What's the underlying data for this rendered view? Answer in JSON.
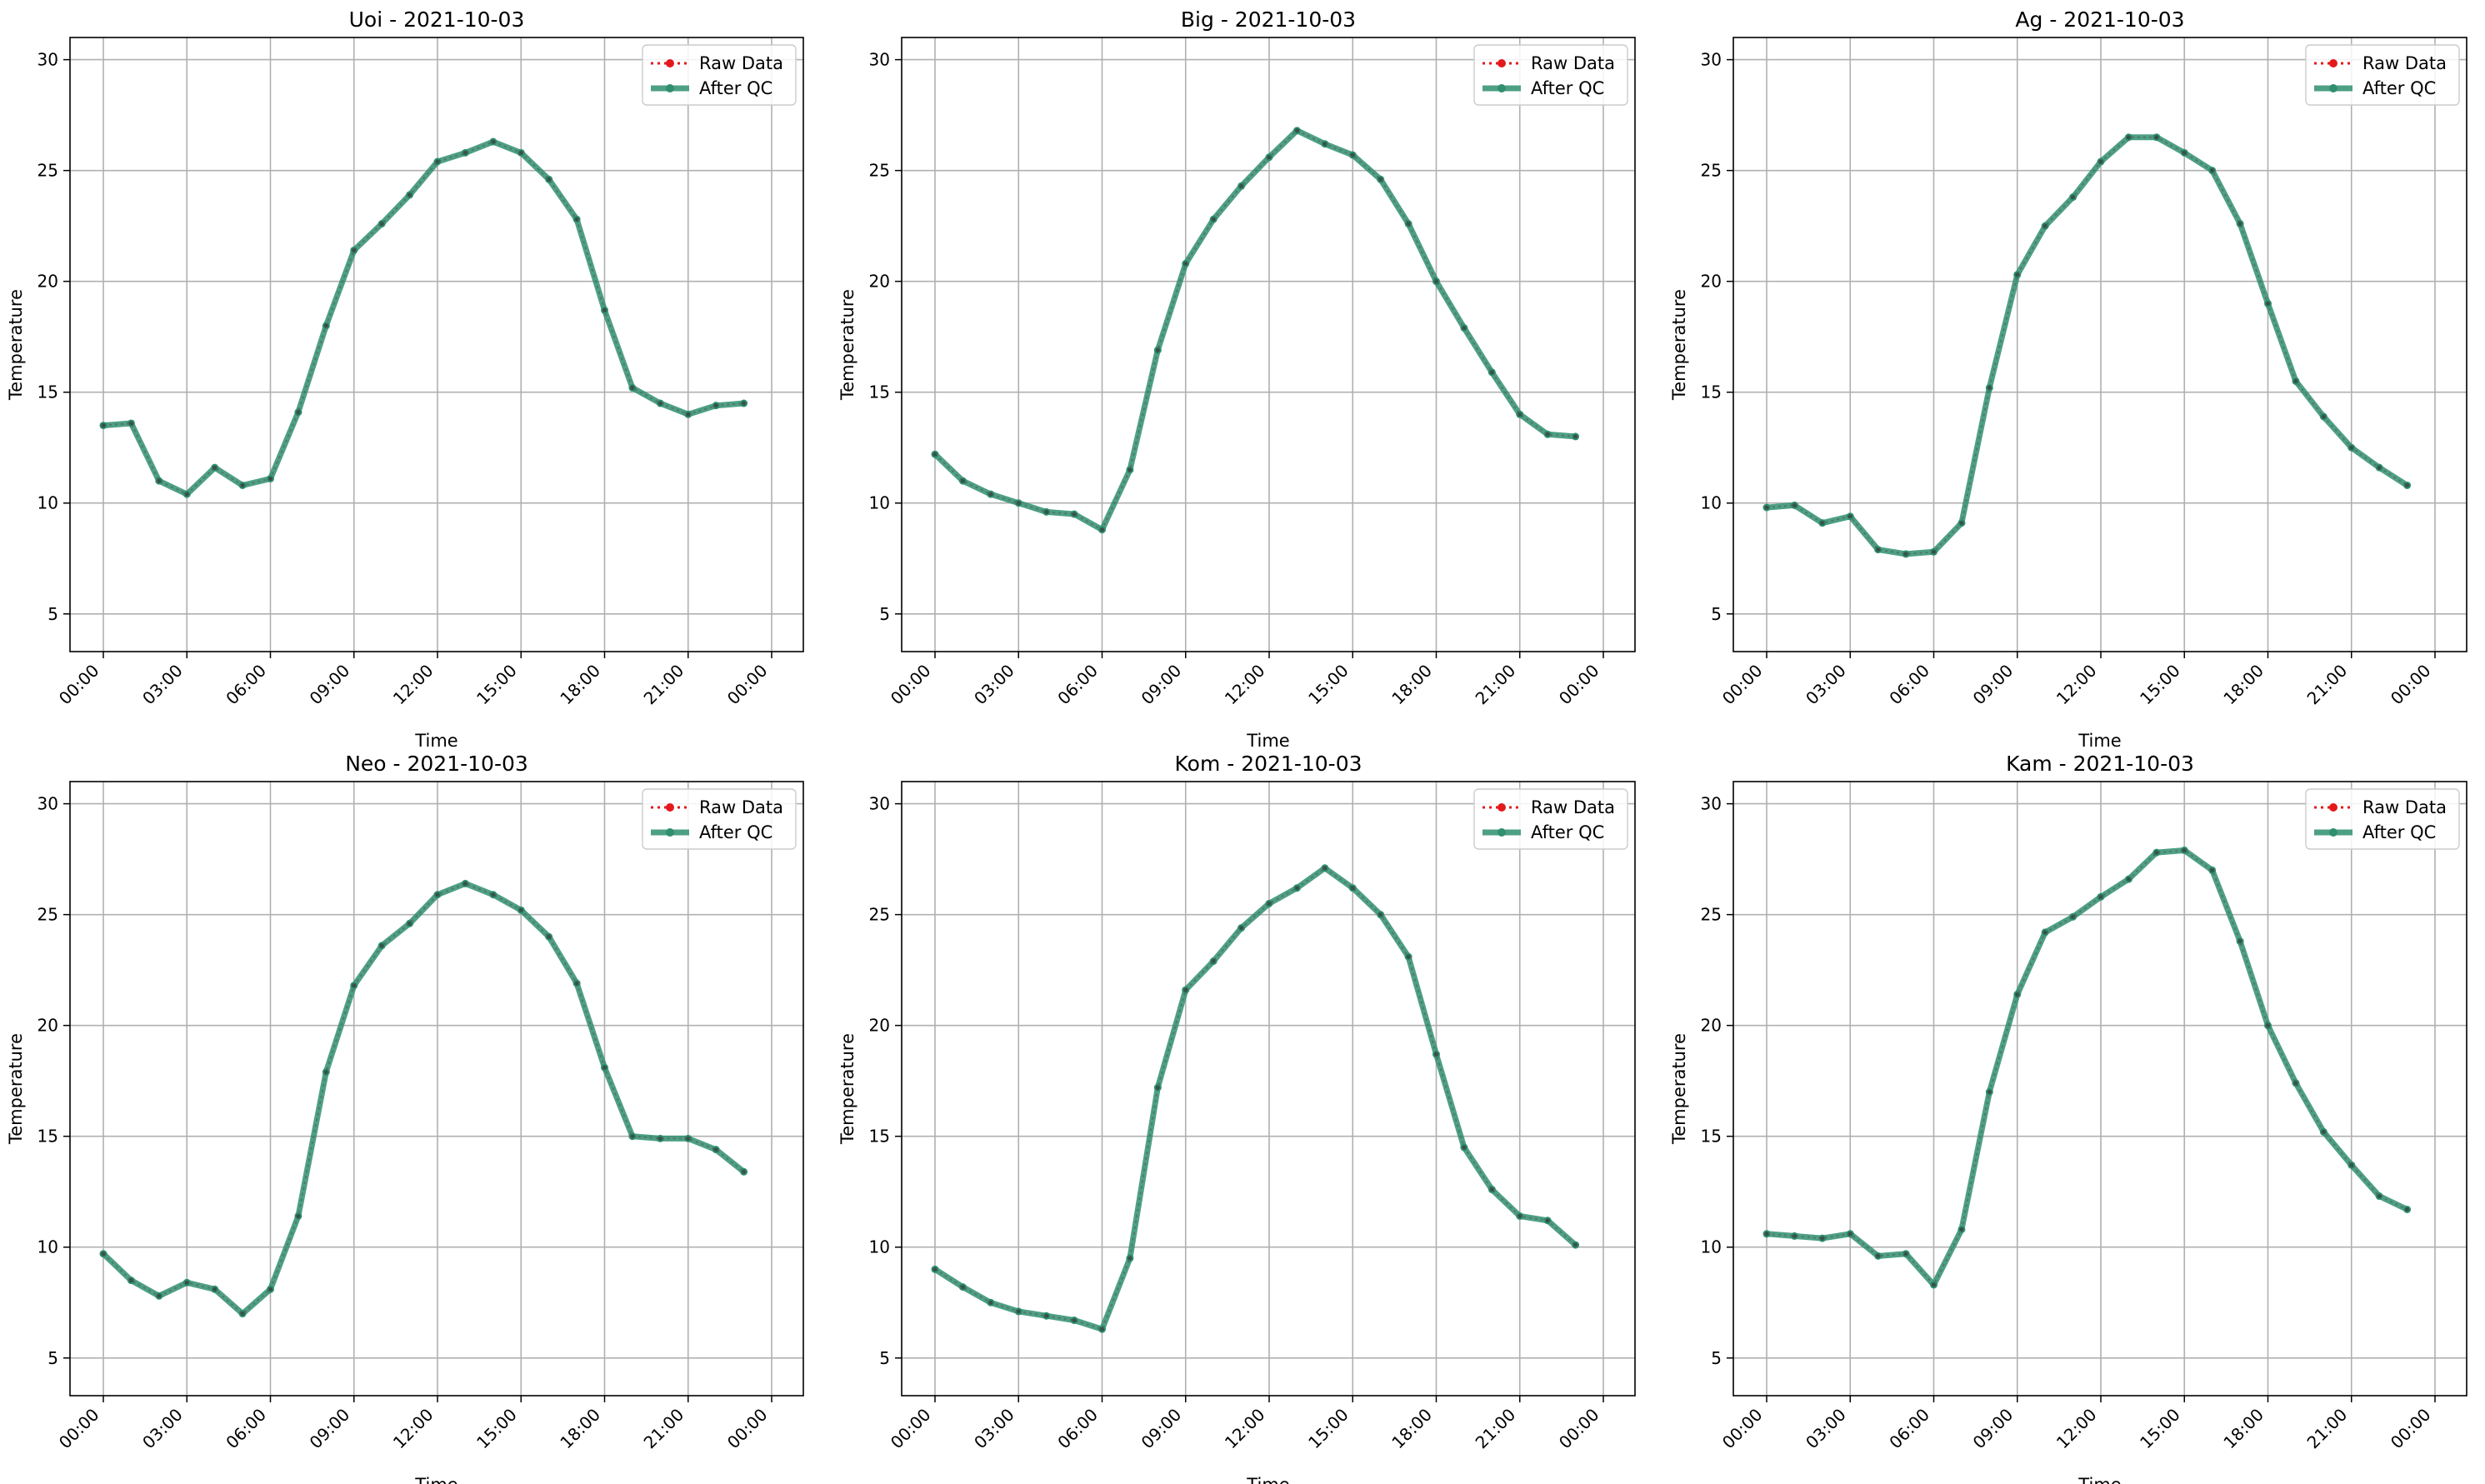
{
  "chart_data": [
    {
      "type": "line",
      "title": "Uoi - 2021-10-03",
      "xlabel": "Time",
      "ylabel": "Temperature",
      "x": [
        "00:00",
        "01:00",
        "02:00",
        "03:00",
        "04:00",
        "05:00",
        "06:00",
        "07:00",
        "08:00",
        "09:00",
        "10:00",
        "11:00",
        "12:00",
        "13:00",
        "14:00",
        "15:00",
        "16:00",
        "17:00",
        "18:00",
        "19:00",
        "20:00",
        "21:00",
        "22:00",
        "23:00"
      ],
      "xticks": [
        "00:00",
        "03:00",
        "06:00",
        "09:00",
        "12:00",
        "15:00",
        "18:00",
        "21:00",
        "00:00"
      ],
      "yticks": [
        "5",
        "10",
        "15",
        "20",
        "25",
        "30"
      ],
      "ylim": [
        3.3,
        31
      ],
      "grid": true,
      "legend_position": "top-right",
      "series": [
        {
          "name": "Raw Data",
          "color": "#e31a1c",
          "values": [
            13.5,
            13.6,
            11.0,
            10.4,
            11.6,
            10.8,
            11.1,
            14.1,
            18.0,
            21.4,
            22.6,
            23.9,
            25.4,
            25.8,
            26.3,
            25.8,
            24.6,
            22.8,
            18.7,
            15.2,
            14.5,
            14.0,
            14.4,
            14.5
          ]
        },
        {
          "name": "After QC",
          "color": "#2f8f6e",
          "values": [
            13.5,
            13.6,
            11.0,
            10.4,
            11.6,
            10.8,
            11.1,
            14.1,
            18.0,
            21.4,
            22.6,
            23.9,
            25.4,
            25.8,
            26.3,
            25.8,
            24.6,
            22.8,
            18.7,
            15.2,
            14.5,
            14.0,
            14.4,
            14.5
          ]
        }
      ]
    },
    {
      "type": "line",
      "title": "Big - 2021-10-03",
      "xlabel": "Time",
      "ylabel": "Temperature",
      "x": [
        "00:00",
        "01:00",
        "02:00",
        "03:00",
        "04:00",
        "05:00",
        "06:00",
        "07:00",
        "08:00",
        "09:00",
        "10:00",
        "11:00",
        "12:00",
        "13:00",
        "14:00",
        "15:00",
        "16:00",
        "17:00",
        "18:00",
        "19:00",
        "20:00",
        "21:00",
        "22:00",
        "23:00"
      ],
      "xticks": [
        "00:00",
        "03:00",
        "06:00",
        "09:00",
        "12:00",
        "15:00",
        "18:00",
        "21:00",
        "00:00"
      ],
      "yticks": [
        "5",
        "10",
        "15",
        "20",
        "25",
        "30"
      ],
      "ylim": [
        3.3,
        31
      ],
      "grid": true,
      "legend_position": "top-right",
      "series": [
        {
          "name": "Raw Data",
          "color": "#e31a1c",
          "values": [
            12.2,
            11.0,
            10.4,
            10.0,
            9.6,
            9.5,
            8.8,
            11.5,
            16.9,
            20.8,
            22.8,
            24.3,
            25.6,
            26.8,
            26.2,
            25.7,
            24.6,
            22.6,
            20.0,
            17.9,
            15.9,
            14.0,
            13.1,
            13.0
          ]
        },
        {
          "name": "After QC",
          "color": "#2f8f6e",
          "values": [
            12.2,
            11.0,
            10.4,
            10.0,
            9.6,
            9.5,
            8.8,
            11.5,
            16.9,
            20.8,
            22.8,
            24.3,
            25.6,
            26.8,
            26.2,
            25.7,
            24.6,
            22.6,
            20.0,
            17.9,
            15.9,
            14.0,
            13.1,
            13.0
          ]
        }
      ]
    },
    {
      "type": "line",
      "title": "Ag - 2021-10-03",
      "xlabel": "Time",
      "ylabel": "Temperature",
      "x": [
        "00:00",
        "01:00",
        "02:00",
        "03:00",
        "04:00",
        "05:00",
        "06:00",
        "07:00",
        "08:00",
        "09:00",
        "10:00",
        "11:00",
        "12:00",
        "13:00",
        "14:00",
        "15:00",
        "16:00",
        "17:00",
        "18:00",
        "19:00",
        "20:00",
        "21:00",
        "22:00",
        "23:00"
      ],
      "xticks": [
        "00:00",
        "03:00",
        "06:00",
        "09:00",
        "12:00",
        "15:00",
        "18:00",
        "21:00",
        "00:00"
      ],
      "yticks": [
        "5",
        "10",
        "15",
        "20",
        "25",
        "30"
      ],
      "ylim": [
        3.3,
        31
      ],
      "grid": true,
      "legend_position": "top-right",
      "series": [
        {
          "name": "Raw Data",
          "color": "#e31a1c",
          "values": [
            9.8,
            9.9,
            9.1,
            9.4,
            7.9,
            7.7,
            7.8,
            9.1,
            15.2,
            20.3,
            22.5,
            23.8,
            25.4,
            26.5,
            26.5,
            25.8,
            25.0,
            22.6,
            19.0,
            15.5,
            13.9,
            12.5,
            11.6,
            10.8
          ]
        },
        {
          "name": "After QC",
          "color": "#2f8f6e",
          "values": [
            9.8,
            9.9,
            9.1,
            9.4,
            7.9,
            7.7,
            7.8,
            9.1,
            15.2,
            20.3,
            22.5,
            23.8,
            25.4,
            26.5,
            26.5,
            25.8,
            25.0,
            22.6,
            19.0,
            15.5,
            13.9,
            12.5,
            11.6,
            10.8
          ]
        }
      ]
    },
    {
      "type": "line",
      "title": "Neo - 2021-10-03",
      "xlabel": "Time",
      "ylabel": "Temperature",
      "x": [
        "00:00",
        "01:00",
        "02:00",
        "03:00",
        "04:00",
        "05:00",
        "06:00",
        "07:00",
        "08:00",
        "09:00",
        "10:00",
        "11:00",
        "12:00",
        "13:00",
        "14:00",
        "15:00",
        "16:00",
        "17:00",
        "18:00",
        "19:00",
        "20:00",
        "21:00",
        "22:00",
        "23:00"
      ],
      "xticks": [
        "00:00",
        "03:00",
        "06:00",
        "09:00",
        "12:00",
        "15:00",
        "18:00",
        "21:00",
        "00:00"
      ],
      "yticks": [
        "5",
        "10",
        "15",
        "20",
        "25",
        "30"
      ],
      "ylim": [
        3.3,
        31
      ],
      "grid": true,
      "legend_position": "top-right",
      "series": [
        {
          "name": "Raw Data",
          "color": "#e31a1c",
          "values": [
            9.7,
            8.5,
            7.8,
            8.4,
            8.1,
            7.0,
            8.1,
            11.4,
            17.9,
            21.8,
            23.6,
            24.6,
            25.9,
            26.4,
            25.9,
            25.2,
            24.0,
            21.9,
            18.1,
            15.0,
            14.9,
            14.9,
            14.4,
            13.4
          ]
        },
        {
          "name": "After QC",
          "color": "#2f8f6e",
          "values": [
            9.7,
            8.5,
            7.8,
            8.4,
            8.1,
            7.0,
            8.1,
            11.4,
            17.9,
            21.8,
            23.6,
            24.6,
            25.9,
            26.4,
            25.9,
            25.2,
            24.0,
            21.9,
            18.1,
            15.0,
            14.9,
            14.9,
            14.4,
            13.4
          ]
        }
      ]
    },
    {
      "type": "line",
      "title": "Kom - 2021-10-03",
      "xlabel": "Time",
      "ylabel": "Temperature",
      "x": [
        "00:00",
        "01:00",
        "02:00",
        "03:00",
        "04:00",
        "05:00",
        "06:00",
        "07:00",
        "08:00",
        "09:00",
        "10:00",
        "11:00",
        "12:00",
        "13:00",
        "14:00",
        "15:00",
        "16:00",
        "17:00",
        "18:00",
        "19:00",
        "20:00",
        "21:00",
        "22:00",
        "23:00"
      ],
      "xticks": [
        "00:00",
        "03:00",
        "06:00",
        "09:00",
        "12:00",
        "15:00",
        "18:00",
        "21:00",
        "00:00"
      ],
      "yticks": [
        "5",
        "10",
        "15",
        "20",
        "25",
        "30"
      ],
      "ylim": [
        3.3,
        31
      ],
      "grid": true,
      "legend_position": "top-right",
      "series": [
        {
          "name": "Raw Data",
          "color": "#e31a1c",
          "values": [
            9.0,
            8.2,
            7.5,
            7.1,
            6.9,
            6.7,
            6.3,
            9.5,
            17.2,
            21.6,
            22.9,
            24.4,
            25.5,
            26.2,
            27.1,
            26.2,
            25.0,
            23.1,
            18.7,
            14.5,
            12.6,
            11.4,
            11.2,
            10.1
          ]
        },
        {
          "name": "After QC",
          "color": "#2f8f6e",
          "values": [
            9.0,
            8.2,
            7.5,
            7.1,
            6.9,
            6.7,
            6.3,
            9.5,
            17.2,
            21.6,
            22.9,
            24.4,
            25.5,
            26.2,
            27.1,
            26.2,
            25.0,
            23.1,
            18.7,
            14.5,
            12.6,
            11.4,
            11.2,
            10.1
          ]
        }
      ]
    },
    {
      "type": "line",
      "title": "Kam - 2021-10-03",
      "xlabel": "Time",
      "ylabel": "Temperature",
      "x": [
        "00:00",
        "01:00",
        "02:00",
        "03:00",
        "04:00",
        "05:00",
        "06:00",
        "07:00",
        "08:00",
        "09:00",
        "10:00",
        "11:00",
        "12:00",
        "13:00",
        "14:00",
        "15:00",
        "16:00",
        "17:00",
        "18:00",
        "19:00",
        "20:00",
        "21:00",
        "22:00",
        "23:00"
      ],
      "xticks": [
        "00:00",
        "03:00",
        "06:00",
        "09:00",
        "12:00",
        "15:00",
        "18:00",
        "21:00",
        "00:00"
      ],
      "yticks": [
        "5",
        "10",
        "15",
        "20",
        "25",
        "30"
      ],
      "ylim": [
        3.3,
        31
      ],
      "grid": true,
      "legend_position": "top-right",
      "series": [
        {
          "name": "Raw Data",
          "color": "#e31a1c",
          "values": [
            10.6,
            10.5,
            10.4,
            10.6,
            9.6,
            9.7,
            8.3,
            10.8,
            17.0,
            21.4,
            24.2,
            24.9,
            25.8,
            26.6,
            27.8,
            27.9,
            27.0,
            23.8,
            20.0,
            17.4,
            15.2,
            13.7,
            12.3,
            11.7
          ]
        },
        {
          "name": "After QC",
          "color": "#2f8f6e",
          "values": [
            10.6,
            10.5,
            10.4,
            10.6,
            9.6,
            9.7,
            8.3,
            10.8,
            17.0,
            21.4,
            24.2,
            24.9,
            25.8,
            26.6,
            27.8,
            27.9,
            27.0,
            23.8,
            20.0,
            17.4,
            15.2,
            13.7,
            12.3,
            11.7
          ]
        }
      ]
    }
  ]
}
